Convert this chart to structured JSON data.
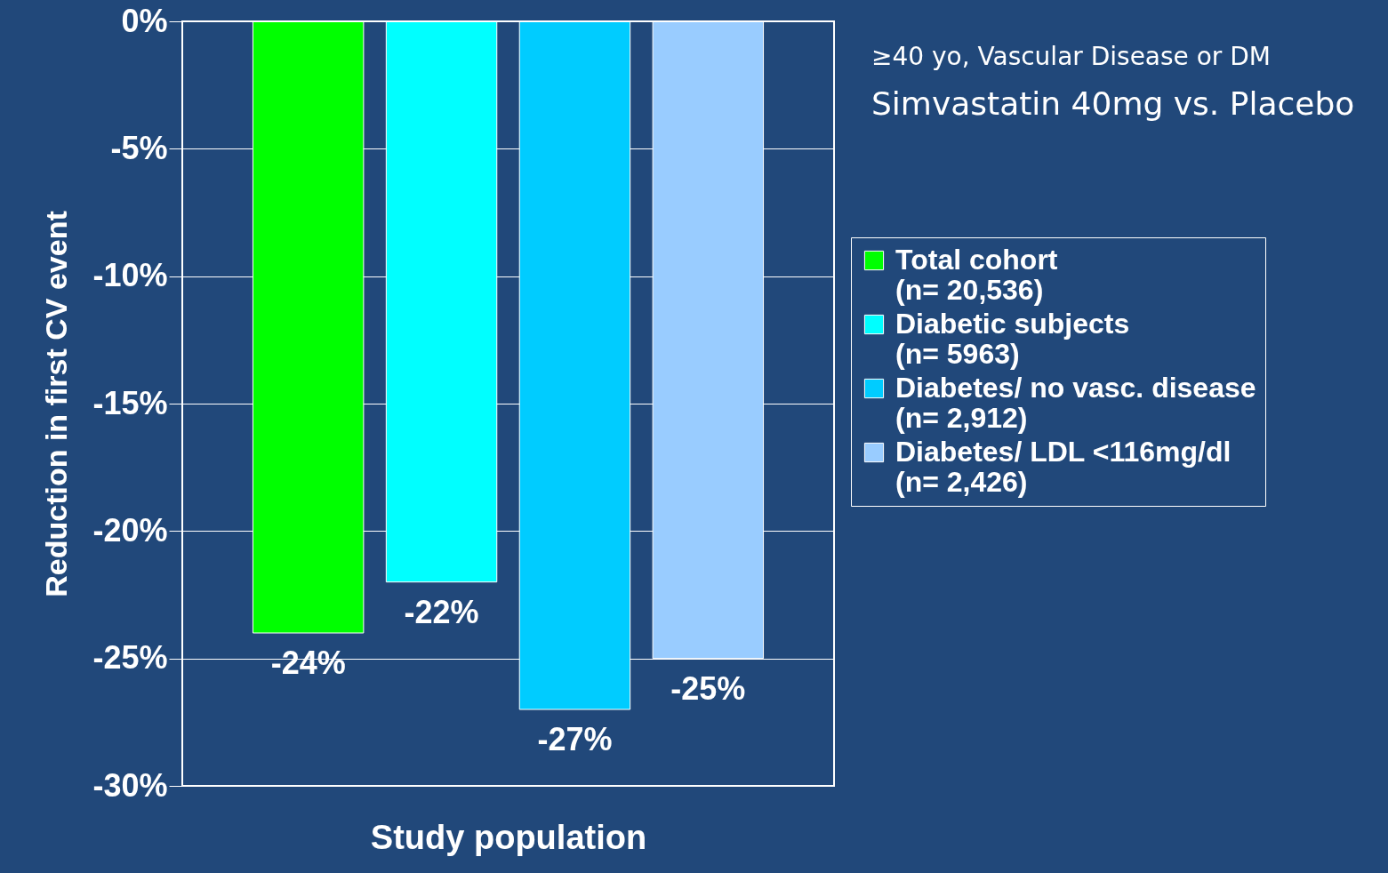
{
  "chart_data": {
    "type": "bar",
    "xlabel": "Study population",
    "ylabel": "Reduction in first CV event",
    "categories": [
      null,
      null,
      null,
      null
    ],
    "series": [
      {
        "name": "Total cohort\n(n= 20,536)",
        "color": "#00ff00",
        "values": [
          -24,
          null,
          null,
          null
        ]
      },
      {
        "name": "Diabetic subjects\n(n= 5963)",
        "color": "#00ffff",
        "values": [
          null,
          -22,
          null,
          null
        ]
      },
      {
        "name": "Diabetes/ no vasc. disease\n(n= 2,912)",
        "color": "#00ccff",
        "values": [
          null,
          null,
          -27,
          null
        ]
      },
      {
        "name": "Diabetes/ LDL <116mg/dl\n(n= 2,426)",
        "color": "#99ccff",
        "values": [
          null,
          null,
          null,
          -25
        ]
      }
    ],
    "value_labels": [
      "-24%",
      "-22%",
      "-27%",
      "-25%"
    ],
    "ylim": [
      -30,
      0
    ],
    "yticks": [
      {
        "value": -30,
        "label": "-30%"
      },
      {
        "value": -25,
        "label": "-25%"
      },
      {
        "value": -20,
        "label": "-20%"
      },
      {
        "value": -15,
        "label": "-15%"
      },
      {
        "value": -10,
        "label": "-10%"
      },
      {
        "value": -5,
        "label": "-5%"
      },
      {
        "value": 0,
        "label": "0%"
      }
    ],
    "grid": "y",
    "legend": "right",
    "tick_labels": "y",
    "annotations": [
      "≥40 yo, Vascular Disease or DM",
      "Simvastatin 40mg vs. Placebo"
    ]
  }
}
